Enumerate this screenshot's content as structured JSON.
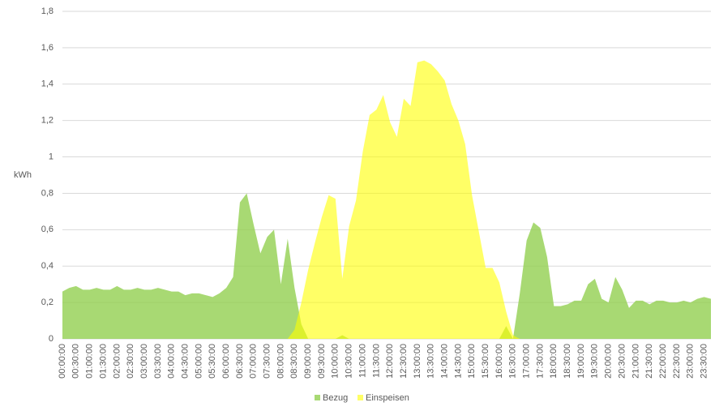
{
  "chart_data": {
    "type": "area",
    "y_label": "kWh",
    "categories": [
      "00:00:00",
      null,
      "00:30:00",
      null,
      "01:00:00",
      null,
      "01:30:00",
      null,
      "02:00:00",
      null,
      "02:30:00",
      null,
      "03:00:00",
      null,
      "03:30:00",
      null,
      "04:00:00",
      null,
      "04:30:00",
      null,
      "05:00:00",
      null,
      "05:30:00",
      null,
      "06:00:00",
      null,
      "06:30:00",
      null,
      "07:00:00",
      null,
      "07:30:00",
      null,
      "08:00:00",
      null,
      "08:30:00",
      null,
      "09:00:00",
      null,
      "09:30:00",
      null,
      "10:00:00",
      null,
      "10:30:00",
      null,
      "11:00:00",
      null,
      "11:30:00",
      null,
      "12:00:00",
      null,
      "12:30:00",
      null,
      "13:00:00",
      null,
      "13:30:00",
      null,
      "14:00:00",
      null,
      "14:30:00",
      null,
      "15:00:00",
      null,
      "15:30:00",
      null,
      "16:00:00",
      null,
      "16:30:00",
      null,
      "17:00:00",
      null,
      "17:30:00",
      null,
      "18:00:00",
      null,
      "18:30:00",
      null,
      "19:00:00",
      null,
      "19:30:00",
      null,
      "20:00:00",
      null,
      "20:30:00",
      null,
      "21:00:00",
      null,
      "21:30:00",
      null,
      "22:00:00",
      null,
      "22:30:00",
      null,
      "23:00:00",
      null,
      "23:30:00",
      null
    ],
    "series": [
      {
        "name": "Bezug",
        "color": "#92d050",
        "values": [
          0.26,
          0.28,
          0.29,
          0.27,
          0.27,
          0.28,
          0.27,
          0.27,
          0.29,
          0.27,
          0.27,
          0.28,
          0.27,
          0.27,
          0.28,
          0.27,
          0.26,
          0.26,
          0.24,
          0.25,
          0.25,
          0.24,
          0.23,
          0.25,
          0.28,
          0.34,
          0.75,
          0.8,
          0.63,
          0.47,
          0.56,
          0.6,
          0.3,
          0.55,
          0.28,
          0.08,
          0,
          0,
          0,
          0,
          0,
          0.02,
          0,
          0,
          0,
          0,
          0,
          0,
          0,
          0,
          0,
          0,
          0,
          0,
          0,
          0,
          0,
          0,
          0,
          0,
          0,
          0,
          0,
          0,
          0,
          0.07,
          0,
          0.25,
          0.54,
          0.64,
          0.61,
          0.45,
          0.18,
          0.18,
          0.19,
          0.21,
          0.21,
          0.3,
          0.33,
          0.22,
          0.2,
          0.34,
          0.27,
          0.17,
          0.21,
          0.21,
          0.19,
          0.21,
          0.21,
          0.2,
          0.2,
          0.21,
          0.2,
          0.22,
          0.23,
          0.22
        ]
      },
      {
        "name": "Einspeisen",
        "color": "#ffff00",
        "values": [
          0,
          0,
          0,
          0,
          0,
          0,
          0,
          0,
          0,
          0,
          0,
          0,
          0,
          0,
          0,
          0,
          0,
          0,
          0,
          0,
          0,
          0,
          0,
          0,
          0,
          0,
          0,
          0,
          0,
          0,
          0,
          0,
          0,
          0,
          0.05,
          0.2,
          0.38,
          0.53,
          0.67,
          0.79,
          0.77,
          0.33,
          0.62,
          0.76,
          1.03,
          1.23,
          1.26,
          1.34,
          1.19,
          1.11,
          1.32,
          1.28,
          1.52,
          1.53,
          1.51,
          1.47,
          1.42,
          1.29,
          1.2,
          1.07,
          0.79,
          0.59,
          0.39,
          0.39,
          0.31,
          0.15,
          0.02,
          0,
          0,
          0,
          0,
          0,
          0,
          0,
          0,
          0,
          0,
          0,
          0,
          0,
          0,
          0,
          0,
          0,
          0,
          0,
          0,
          0,
          0,
          0,
          0,
          0,
          0,
          0,
          0,
          0
        ]
      }
    ],
    "ylim": [
      0,
      1.8
    ],
    "yticks": [
      0,
      {
        "value": 0.2,
        "label": "0,2"
      },
      {
        "value": 0.4,
        "label": "0,4"
      },
      {
        "value": 0.6,
        "label": "0,6"
      },
      {
        "value": 0.8,
        "label": "0,8"
      },
      1,
      {
        "value": 1.2,
        "label": "1,2"
      },
      {
        "value": 1.4,
        "label": "1,4"
      },
      {
        "value": 1.6,
        "label": "1,6"
      },
      {
        "value": 1.8,
        "label": "1,8"
      }
    ],
    "grid": true,
    "legend": "bottom"
  }
}
